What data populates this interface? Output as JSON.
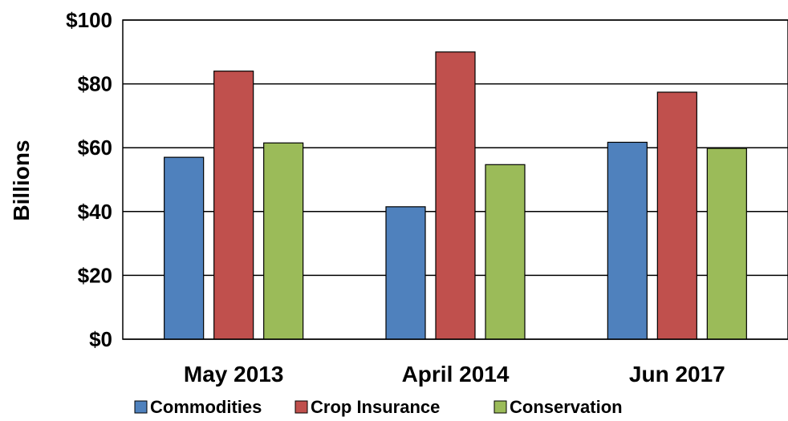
{
  "chart_data": {
    "type": "bar",
    "categories": [
      "May 2013",
      "April 2014",
      "Jun 2017"
    ],
    "series": [
      {
        "name": "Commodities",
        "values": [
          57,
          41.5,
          61.7
        ],
        "color": "#4F81BD"
      },
      {
        "name": "Crop Insurance",
        "values": [
          84,
          90,
          77.4
        ],
        "color": "#C0504D"
      },
      {
        "name": "Conservation",
        "values": [
          61.5,
          54.7,
          59.8
        ],
        "color": "#9BBB59"
      }
    ],
    "title": "",
    "xlabel": "",
    "ylabel": "Billions",
    "ylim": [
      0,
      100
    ],
    "yticks": [
      0,
      20,
      40,
      60,
      80,
      100
    ],
    "ytick_labels": [
      "$0",
      "$20",
      "$40",
      "$60",
      "$80",
      "$100"
    ],
    "grid": true,
    "legend_position": "bottom"
  }
}
